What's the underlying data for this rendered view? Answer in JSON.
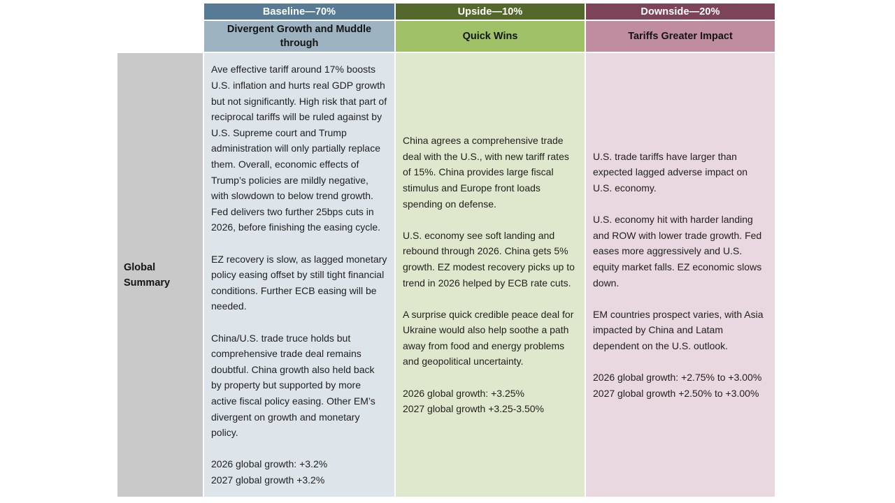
{
  "table": {
    "row_label": "Global Summary",
    "label_bg": "#c9c9c9",
    "columns": [
      {
        "id": "baseline",
        "scenario": "Baseline—70%",
        "title": "Divergent Growth and Muddle through",
        "header_bg": "#577b95",
        "title_bg": "#9db3c2",
        "body_bg": "#dde4ea",
        "paragraphs": [
          [
            "Ave effective tariff around 17% boosts U.S. inflation and hurts real GDP growth but not significantly. High risk that part of reciprocal tariffs will be ruled against by U.S. Supreme court and Trump administration will only partially replace them. Overall, economic effects of Trump’s policies are mildly negative, with slowdown to below trend growth.  Fed delivers two further 25bps cuts in 2026, before finishing the easing cycle."
          ],
          [
            "EZ recovery is slow, as lagged monetary policy easing offset by still tight financial conditions.  Further ECB easing will be needed."
          ],
          [
            "China/U.S. trade truce holds but comprehensive trade deal remains doubtful.  China growth also held back by property but supported by more active fiscal policy easing. Other EM’s divergent on growth and monetary policy."
          ],
          [
            "2026 global growth: +3.2%",
            "2027 global growth +3.2%"
          ]
        ]
      },
      {
        "id": "upside",
        "scenario": "Upside—10%",
        "title": "Quick Wins",
        "header_bg": "#54682b",
        "title_bg": "#a0c167",
        "body_bg": "#dfe8cc",
        "paragraphs": [
          [
            "China agrees a comprehensive trade deal with the U.S., with new tariff rates of 15%. China provides large fiscal stimulus and Europe front loads spending on defense."
          ],
          [
            "U.S. economy see soft landing and rebound through 2026.  China gets 5% growth.  EZ modest recovery picks up to trend in 2026 helped by ECB rate cuts."
          ],
          [
            "A surprise quick credible peace deal for Ukraine would also help soothe a path away from food and energy problems and geopolitical uncertainty."
          ],
          [
            "2026 global growth: +3.25%",
            "2027 global growth +3.25-3.50%"
          ]
        ]
      },
      {
        "id": "downside",
        "scenario": "Downside—20%",
        "title": "Tariffs Greater Impact",
        "header_bg": "#7d4459",
        "title_bg": "#c08ca0",
        "body_bg": "#e9d8df",
        "paragraphs": [
          [
            "U.S. trade tariffs have larger than expected lagged adverse impact on U.S. economy."
          ],
          [
            "U.S. economy hit with harder landing and ROW with lower trade growth. Fed eases more aggressively and U.S. equity market falls. EZ economic slows down."
          ],
          [
            "EM countries prospect varies, with Asia impacted by China and Latam dependent on the U.S. outlook."
          ],
          [
            "2026 global growth: +2.75% to +3.00%",
            "2027 global growth +2.50% to +3.00%"
          ]
        ]
      }
    ]
  }
}
